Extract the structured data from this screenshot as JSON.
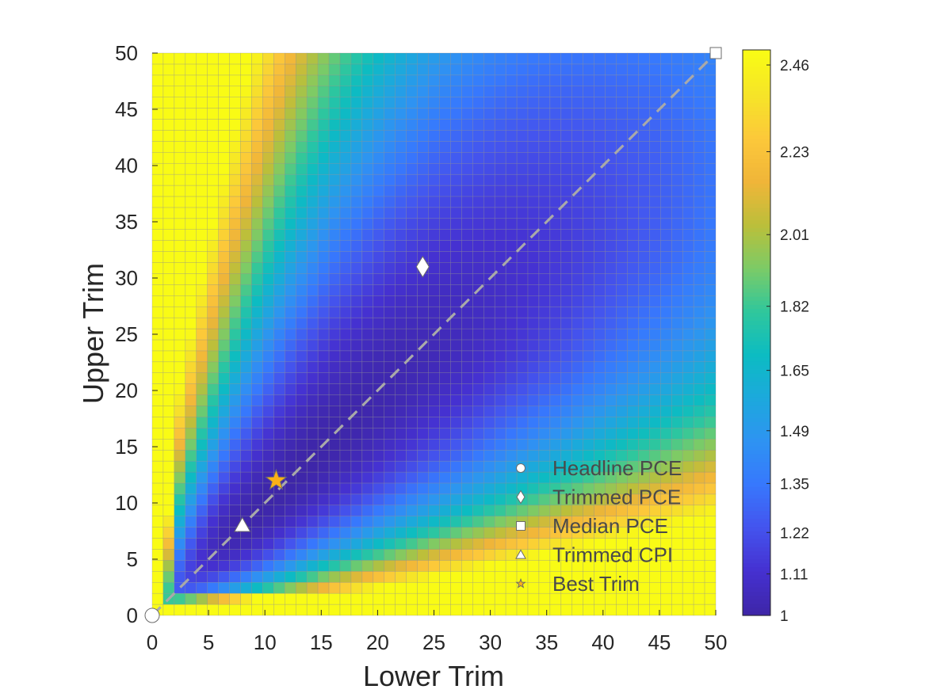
{
  "chart_data": {
    "type": "heatmap",
    "title": "",
    "xlabel": "Lower Trim",
    "ylabel": "Upper Trim",
    "xlim": [
      0,
      50
    ],
    "ylim": [
      0,
      50
    ],
    "xticks": [
      "0",
      "5",
      "10",
      "15",
      "20",
      "25",
      "30",
      "35",
      "40",
      "45",
      "50"
    ],
    "yticks": [
      "0",
      "5",
      "10",
      "15",
      "20",
      "25",
      "30",
      "35",
      "40",
      "45",
      "50"
    ],
    "grid_cells_per_axis": 51,
    "colormap": "parula",
    "colorbar": {
      "range": [
        1,
        2.5
      ],
      "ticks": [
        "1",
        "1.11",
        "1.22",
        "1.35",
        "1.49",
        "1.65",
        "1.82",
        "2.01",
        "2.23",
        "2.46"
      ],
      "stops": [
        "#3e26a8",
        "#4531d1",
        "#4454ee",
        "#3778fd",
        "#2e93f2",
        "#1ca9dc",
        "#0cbcc2",
        "#30c79c",
        "#7ccb66",
        "#bbbf3a",
        "#f0b539",
        "#fcc83a",
        "#f6e428",
        "#f9fb15"
      ]
    },
    "reference_line": {
      "from": [
        0,
        0
      ],
      "to": [
        50,
        50
      ],
      "style": "dashed",
      "color": "#a9a9a9"
    },
    "markers": [
      {
        "name": "Headline PCE",
        "shape": "circle",
        "x": 0,
        "y": 0,
        "color": "#ffffff"
      },
      {
        "name": "Trimmed PCE",
        "shape": "diamond",
        "x": 24,
        "y": 31,
        "color": "#ffffff"
      },
      {
        "name": "Median PCE",
        "shape": "square",
        "x": 50,
        "y": 50,
        "color": "#ffffff"
      },
      {
        "name": "Trimmed CPI",
        "shape": "triangle",
        "x": 8,
        "y": 8,
        "color": "#ffffff"
      },
      {
        "name": "Best Trim",
        "shape": "star",
        "x": 11,
        "y": 12,
        "color": "#fbb116"
      }
    ],
    "legend": {
      "position": "bottom-right",
      "entries": [
        "Headline PCE",
        "Trimmed PCE",
        "Median PCE",
        "Trimmed CPI",
        "Best Trim"
      ]
    }
  }
}
